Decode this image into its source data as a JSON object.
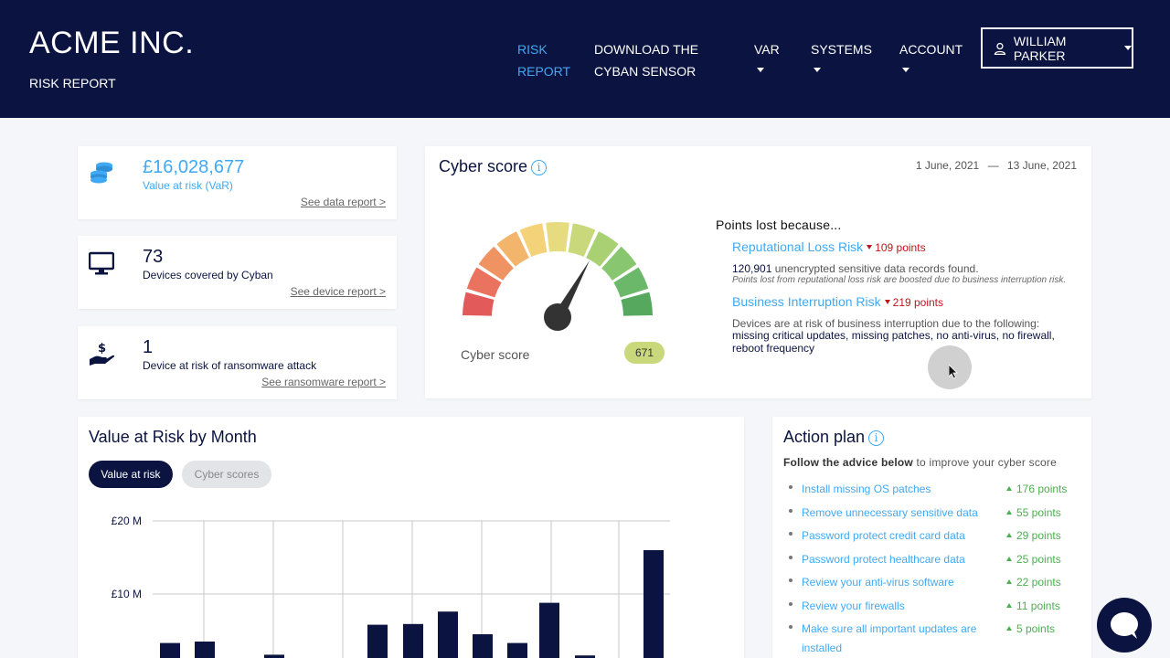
{
  "header": {
    "brand": "ACME INC.",
    "subtitle": "RISK REPORT",
    "nav": [
      {
        "line1": "RISK",
        "line2": "REPORT"
      },
      {
        "line1": "DOWNLOAD THE",
        "line2": "CYBAN SENSOR"
      },
      {
        "label": "VAR"
      },
      {
        "label": "SYSTEMS"
      },
      {
        "label": "ACCOUNT"
      }
    ],
    "user": "WILLIAM PARKER"
  },
  "stats": [
    {
      "value": "£16,028,677",
      "label": "Value at risk (VaR)",
      "link": "See data report >",
      "icon": "coins-icon"
    },
    {
      "value": "73",
      "label": "Devices covered by Cyban",
      "link": "See device report >",
      "icon": "monitor-icon"
    },
    {
      "value": "1",
      "label": "Device at risk of ransomware attack",
      "link": "See ransomware report >",
      "icon": "hand-dollar-icon"
    }
  ],
  "cyber_score": {
    "title": "Cyber score",
    "date_from": "1 June, 2021",
    "date_sep": "—",
    "date_to": "13 June, 2021",
    "label": "Cyber score",
    "score": "671",
    "points_lost_heading": "Points lost because...",
    "risks": [
      {
        "title": "Reputational Loss Risk",
        "points": "109 points",
        "count": "120,901",
        "text": "unencrypted sensitive data records found.",
        "note": "Points lost from reputational loss risk are boosted due to business interruption risk."
      },
      {
        "title": "Business Interruption Risk",
        "points": "219 points",
        "text": "Devices are at risk of business interruption due to the following:",
        "items": "missing critical updates, missing patches, no anti-virus, no firewall, reboot frequency"
      }
    ]
  },
  "var_chart": {
    "title": "Value at Risk by Month",
    "toggle_active": "Value at risk",
    "toggle_inactive": "Cyber scores"
  },
  "chart_data": {
    "type": "bar",
    "title": "Value at Risk by Month",
    "ylabel": "",
    "xlabel": "",
    "yticks": [
      "£20 M",
      "£10 M"
    ],
    "ylim": [
      0,
      20
    ],
    "categories": [
      "",
      "",
      "",
      "",
      "",
      "",
      "",
      "",
      "",
      "",
      "",
      "",
      "",
      "",
      ""
    ],
    "values": [
      3.3,
      3.5,
      1.0,
      1.7,
      1.2,
      0.2,
      5.8,
      5.9,
      7.6,
      4.5,
      3.3,
      8.8,
      1.6,
      16.0,
      null
    ],
    "grid": true
  },
  "action_plan": {
    "title": "Action plan",
    "sub_bold": "Follow the advice below",
    "sub_rest": "to improve your cyber score",
    "items": [
      {
        "text": "Install missing OS patches",
        "points": "176 points"
      },
      {
        "text": "Remove unnecessary sensitive data",
        "points": "55 points"
      },
      {
        "text": "Password protect credit card data",
        "points": "29 points"
      },
      {
        "text": "Password protect healthcare data",
        "points": "25 points"
      },
      {
        "text": "Review your anti-virus software",
        "points": "22 points"
      },
      {
        "text": "Review your firewalls",
        "points": "11 points"
      },
      {
        "text": "Make sure all important updates are installed",
        "points": "5 points"
      }
    ]
  },
  "colors": {
    "navy": "#0b1440",
    "accent_blue": "#3fa9f5",
    "loss_red": "#c0141b",
    "gain_green": "#4caf50",
    "score_pill": "#c8d87a"
  }
}
